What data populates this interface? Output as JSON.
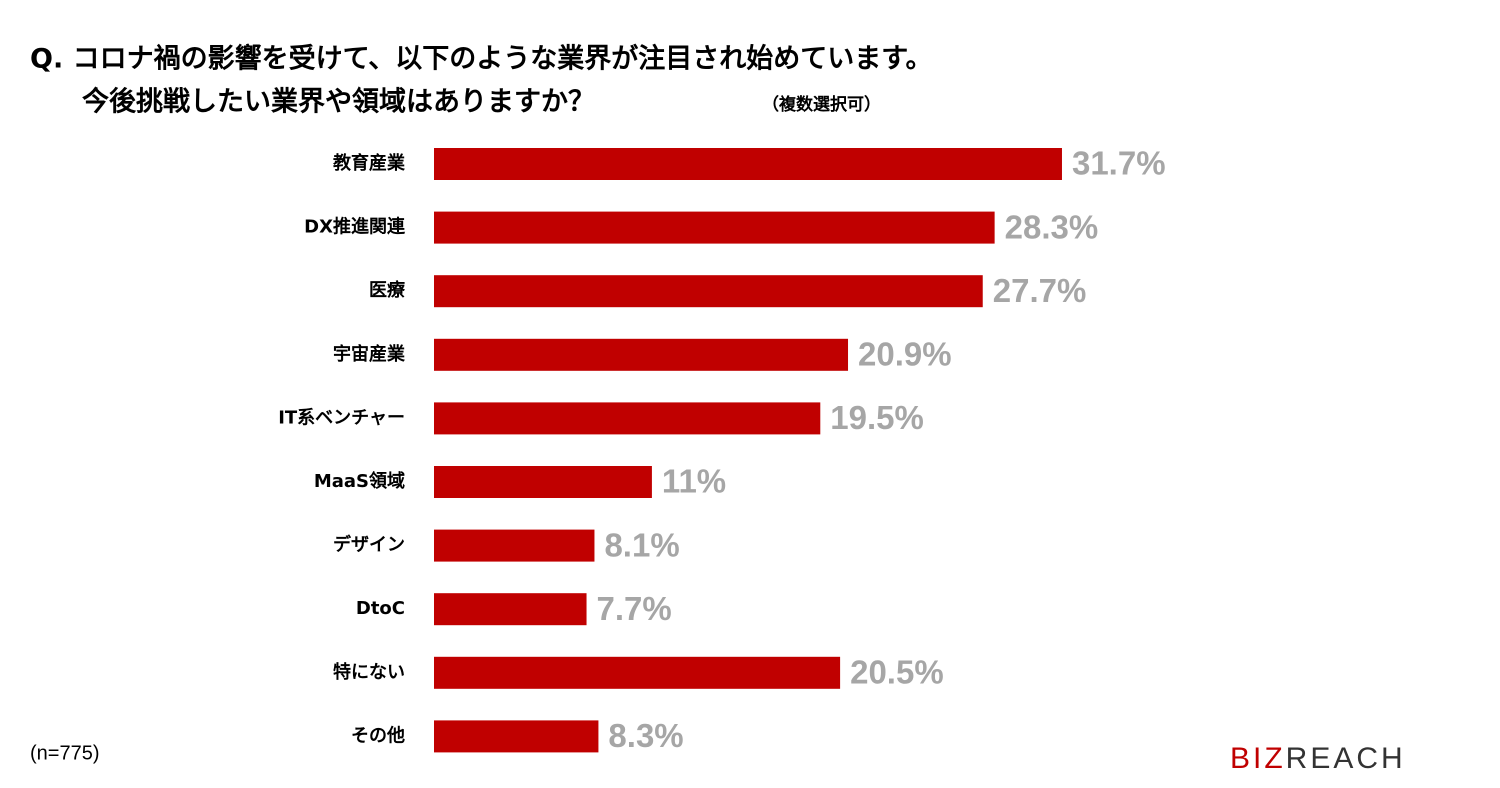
{
  "chart_data": {
    "type": "bar",
    "orientation": "horizontal",
    "title": "Q. コロナ禍の影響を受けて、以下のような業界が注目され始めています。",
    "subtitle": "今後挑戦したい業界や領域はありますか？",
    "subtitle_note": "（複数選択可）",
    "categories": [
      "教育産業",
      "DX推進関連",
      "医療",
      "宇宙産業",
      "IT系ベンチャー",
      "MaaS領域",
      "デザイン",
      "DtoC",
      "特にない",
      "その他"
    ],
    "values": [
      31.7,
      28.3,
      27.7,
      20.9,
      19.5,
      11,
      8.1,
      7.7,
      20.5,
      8.3
    ],
    "value_labels": [
      "31.7%",
      "28.3%",
      "27.7%",
      "20.9%",
      "19.5%",
      "11%",
      "8.1%",
      "7.7%",
      "20.5%",
      "8.3%"
    ],
    "color": "#c00000",
    "note": "(n=775)"
  },
  "logo": [
    "BIZ",
    "REACH"
  ]
}
